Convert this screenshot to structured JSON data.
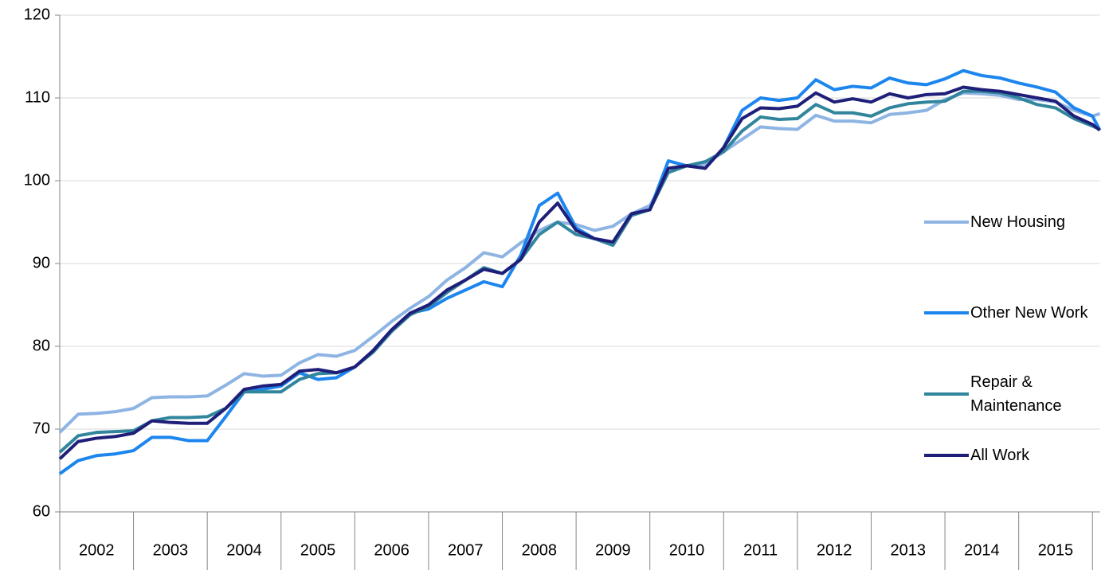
{
  "chart_data": {
    "type": "line",
    "x": [
      2002,
      2002.25,
      2002.5,
      2002.75,
      2003,
      2003.25,
      2003.5,
      2003.75,
      2004,
      2004.25,
      2004.5,
      2004.75,
      2005,
      2005.25,
      2005.5,
      2005.75,
      2006,
      2006.25,
      2006.5,
      2006.75,
      2007,
      2007.25,
      2007.5,
      2007.75,
      2008,
      2008.25,
      2008.5,
      2008.75,
      2009,
      2009.25,
      2009.5,
      2009.75,
      2010,
      2010.25,
      2010.5,
      2010.75,
      2011,
      2011.25,
      2011.5,
      2011.75,
      2012,
      2012.25,
      2012.5,
      2012.75,
      2013,
      2013.25,
      2013.5,
      2013.75,
      2014,
      2014.25,
      2014.5,
      2014.75,
      2015,
      2015.25,
      2015.5,
      2015.75,
      2016,
      2016.1
    ],
    "xlim": [
      2002,
      2016.1
    ],
    "xticks": [
      {
        "value": 2002.5,
        "label": "2002"
      },
      {
        "value": 2003.5,
        "label": "2003"
      },
      {
        "value": 2004.5,
        "label": "2004"
      },
      {
        "value": 2005.5,
        "label": "2005"
      },
      {
        "value": 2006.5,
        "label": "2006"
      },
      {
        "value": 2007.5,
        "label": "2007"
      },
      {
        "value": 2008.5,
        "label": "2008"
      },
      {
        "value": 2009.5,
        "label": "2009"
      },
      {
        "value": 2010.5,
        "label": "2010"
      },
      {
        "value": 2011.5,
        "label": "2011"
      },
      {
        "value": 2012.5,
        "label": "2012"
      },
      {
        "value": 2013.5,
        "label": "2013"
      },
      {
        "value": 2014.5,
        "label": "2014"
      },
      {
        "value": 2015.5,
        "label": "2015"
      }
    ],
    "ylim": [
      60,
      120
    ],
    "yticks": [
      60,
      70,
      80,
      90,
      100,
      110,
      120
    ],
    "grid": true,
    "legend": "right",
    "series": [
      {
        "name": "New Housing",
        "color": "#8eb4e3",
        "values": [
          69.6,
          71.8,
          71.9,
          72.1,
          72.5,
          73.8,
          73.9,
          73.9,
          74.0,
          75.3,
          76.7,
          76.4,
          76.5,
          78.0,
          79.0,
          78.8,
          79.5,
          81.2,
          83.0,
          84.6,
          86.0,
          88.0,
          89.5,
          91.3,
          90.8,
          92.5,
          94.0,
          95.0,
          94.7,
          94.0,
          94.5,
          96.0,
          97.0,
          101.0,
          101.8,
          102.0,
          103.5,
          105.0,
          106.5,
          106.3,
          106.2,
          107.9,
          107.2,
          107.2,
          107.0,
          108.0,
          108.2,
          108.5,
          109.8,
          110.6,
          110.5,
          110.3,
          109.8,
          109.8,
          109.5,
          108.5,
          107.8,
          108.1
        ]
      },
      {
        "name": "Other New Work",
        "color": "#1c86ee",
        "values": [
          64.6,
          66.2,
          66.8,
          67.0,
          67.4,
          69.0,
          69.0,
          68.6,
          68.6,
          71.5,
          74.5,
          74.8,
          75.2,
          76.8,
          76.0,
          76.2,
          77.5,
          79.5,
          82.0,
          84.0,
          84.5,
          85.8,
          86.8,
          87.8,
          87.2,
          91.0,
          97.0,
          98.5,
          94.3,
          93.0,
          92.5,
          96.0,
          96.5,
          102.4,
          101.8,
          101.5,
          104.0,
          108.5,
          110.0,
          109.7,
          110.0,
          112.2,
          111.0,
          111.4,
          111.2,
          112.4,
          111.8,
          111.6,
          112.3,
          113.3,
          112.7,
          112.4,
          111.8,
          111.3,
          110.7,
          108.8,
          107.8,
          106.1
        ]
      },
      {
        "name": "Repair & Maintenance",
        "color": "#31859c",
        "values": [
          67.2,
          69.2,
          69.6,
          69.7,
          69.8,
          71.0,
          71.4,
          71.4,
          71.5,
          72.5,
          74.5,
          74.5,
          74.5,
          76.0,
          76.7,
          76.8,
          77.5,
          79.3,
          81.8,
          83.8,
          84.8,
          86.5,
          88.0,
          89.5,
          88.8,
          90.5,
          93.5,
          95.0,
          93.5,
          93.0,
          92.2,
          95.8,
          96.5,
          101.0,
          101.8,
          102.3,
          103.5,
          106.0,
          107.7,
          107.4,
          107.5,
          109.2,
          108.2,
          108.2,
          107.8,
          108.8,
          109.3,
          109.5,
          109.6,
          110.8,
          110.8,
          110.6,
          110.0,
          109.2,
          108.8,
          107.5,
          106.6,
          106.2
        ]
      },
      {
        "name": "All Work",
        "color": "#1f1f7a",
        "values": [
          66.4,
          68.5,
          68.9,
          69.1,
          69.5,
          71.0,
          70.8,
          70.7,
          70.7,
          72.5,
          74.8,
          75.2,
          75.4,
          77.0,
          77.2,
          76.8,
          77.5,
          79.5,
          82.0,
          84.0,
          85.0,
          86.8,
          88.0,
          89.3,
          88.8,
          90.5,
          95.0,
          97.3,
          94.0,
          93.0,
          92.6,
          96.0,
          96.5,
          101.5,
          101.8,
          101.5,
          104.0,
          107.5,
          108.8,
          108.7,
          109.0,
          110.6,
          109.5,
          109.9,
          109.5,
          110.5,
          110.0,
          110.4,
          110.5,
          111.3,
          111.0,
          110.8,
          110.4,
          110.0,
          109.6,
          107.8,
          106.8,
          106.1
        ]
      }
    ]
  }
}
